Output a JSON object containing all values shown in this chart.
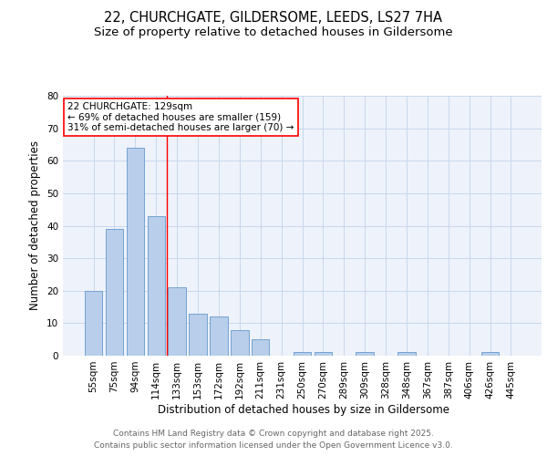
{
  "title_line1": "22, CHURCHGATE, GILDERSOME, LEEDS, LS27 7HA",
  "title_line2": "Size of property relative to detached houses in Gildersome",
  "xlabel": "Distribution of detached houses by size in Gildersome",
  "ylabel": "Number of detached properties",
  "categories": [
    "55sqm",
    "75sqm",
    "94sqm",
    "114sqm",
    "133sqm",
    "153sqm",
    "172sqm",
    "192sqm",
    "211sqm",
    "231sqm",
    "250sqm",
    "270sqm",
    "289sqm",
    "309sqm",
    "328sqm",
    "348sqm",
    "367sqm",
    "387sqm",
    "406sqm",
    "426sqm",
    "445sqm"
  ],
  "values": [
    20,
    39,
    64,
    43,
    21,
    13,
    12,
    8,
    5,
    0,
    1,
    1,
    0,
    1,
    0,
    1,
    0,
    0,
    0,
    1,
    0
  ],
  "bar_color": "#b8ceea",
  "bar_edge_color": "#6699cc",
  "grid_color": "#c8d8ec",
  "background_color": "#eef2fa",
  "annotation_text": "22 CHURCHGATE: 129sqm\n← 69% of detached houses are smaller (159)\n31% of semi-detached houses are larger (70) →",
  "ylim": [
    0,
    80
  ],
  "yticks": [
    0,
    10,
    20,
    30,
    40,
    50,
    60,
    70,
    80
  ],
  "footer_line1": "Contains HM Land Registry data © Crown copyright and database right 2025.",
  "footer_line2": "Contains public sector information licensed under the Open Government Licence v3.0.",
  "title_fontsize": 10.5,
  "subtitle_fontsize": 9.5,
  "axis_label_fontsize": 8.5,
  "tick_fontsize": 7.5,
  "footer_fontsize": 6.5,
  "annot_fontsize": 7.5
}
